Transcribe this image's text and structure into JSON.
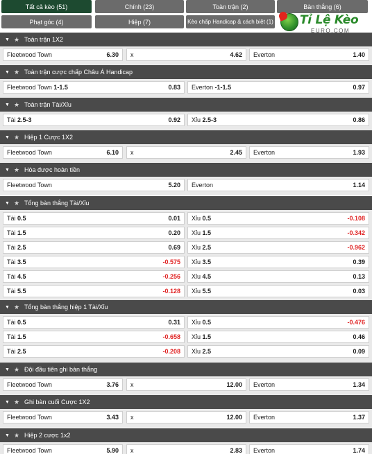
{
  "tabs": [
    {
      "label": "Tất cả kèo (51)",
      "active": true
    },
    {
      "label": "Chính (23)",
      "active": false
    },
    {
      "label": "Toàn trận (2)",
      "active": false
    },
    {
      "label": "Bàn thắng (6)",
      "active": false
    },
    {
      "label": "Phạt góc (4)",
      "active": false
    },
    {
      "label": "Hiệp (7)",
      "active": false
    },
    {
      "label": "Kèo chấp Handicap & cách biệt (1)",
      "active": false
    }
  ],
  "logo": {
    "text": "Tỉ Lệ Kèo",
    "sub": "EURO.COM"
  },
  "sections": [
    {
      "title": "Toàn trận 1X2",
      "rows": [
        [
          {
            "label": "Fleetwood Town",
            "value": "6.30"
          },
          {
            "label": "x",
            "value": "4.62"
          },
          {
            "label": "Everton",
            "value": "1.40"
          }
        ]
      ]
    },
    {
      "title": "Toàn trận cược chấp Châu Á Handicap",
      "rows": [
        [
          {
            "label": "Fleetwood Town",
            "line": "1-1.5",
            "value": "0.83"
          },
          {
            "label": "Everton",
            "line": "-1-1.5",
            "value": "0.97"
          }
        ]
      ]
    },
    {
      "title": "Toàn trận Tài/Xỉu",
      "rows": [
        [
          {
            "label": "Tài",
            "line": "2.5-3",
            "value": "0.92"
          },
          {
            "label": "Xỉu",
            "line": "2.5-3",
            "value": "0.86"
          }
        ]
      ]
    },
    {
      "title": "Hiệp 1 Cược 1X2",
      "rows": [
        [
          {
            "label": "Fleetwood Town",
            "value": "6.10"
          },
          {
            "label": "x",
            "value": "2.45"
          },
          {
            "label": "Everton",
            "value": "1.93"
          }
        ]
      ]
    },
    {
      "title": "Hòa được hoàn tiền",
      "rows": [
        [
          {
            "label": "Fleetwood Town",
            "value": "5.20"
          },
          {
            "label": "Everton",
            "value": "1.14"
          }
        ]
      ]
    },
    {
      "title": "Tổng bàn thắng Tài/Xỉu",
      "rows": [
        [
          {
            "label": "Tài",
            "line": "0.5",
            "value": "0.01"
          },
          {
            "label": "Xỉu",
            "line": "0.5",
            "value": "-0.108",
            "neg": true
          }
        ],
        [
          {
            "label": "Tài",
            "line": "1.5",
            "value": "0.20"
          },
          {
            "label": "Xỉu",
            "line": "1.5",
            "value": "-0.342",
            "neg": true
          }
        ],
        [
          {
            "label": "Tài",
            "line": "2.5",
            "value": "0.69"
          },
          {
            "label": "Xỉu",
            "line": "2.5",
            "value": "-0.962",
            "neg": true
          }
        ],
        [
          {
            "label": "Tài",
            "line": "3.5",
            "value": "-0.575",
            "neg": true
          },
          {
            "label": "Xỉu",
            "line": "3.5",
            "value": "0.39"
          }
        ],
        [
          {
            "label": "Tài",
            "line": "4.5",
            "value": "-0.256",
            "neg": true
          },
          {
            "label": "Xỉu",
            "line": "4.5",
            "value": "0.13"
          }
        ],
        [
          {
            "label": "Tài",
            "line": "5.5",
            "value": "-0.128",
            "neg": true
          },
          {
            "label": "Xỉu",
            "line": "5.5",
            "value": "0.03"
          }
        ]
      ]
    },
    {
      "title": "Tổng bàn thắng hiệp 1 Tài/Xỉu",
      "rows": [
        [
          {
            "label": "Tài",
            "line": "0.5",
            "value": "0.31"
          },
          {
            "label": "Xỉu",
            "line": "0.5",
            "value": "-0.476",
            "neg": true
          }
        ],
        [
          {
            "label": "Tài",
            "line": "1.5",
            "value": "-0.658",
            "neg": true
          },
          {
            "label": "Xỉu",
            "line": "1.5",
            "value": "0.46"
          }
        ],
        [
          {
            "label": "Tài",
            "line": "2.5",
            "value": "-0.208",
            "neg": true
          },
          {
            "label": "Xỉu",
            "line": "2.5",
            "value": "0.09"
          }
        ]
      ]
    },
    {
      "title": "Đội đầu tiên ghi bàn thắng",
      "rows": [
        [
          {
            "label": "Fleetwood Town",
            "value": "3.76"
          },
          {
            "label": "x",
            "value": "12.00"
          },
          {
            "label": "Everton",
            "value": "1.34"
          }
        ]
      ]
    },
    {
      "title": "Ghi bàn cuối Cược 1X2",
      "rows": [
        [
          {
            "label": "Fleetwood Town",
            "value": "3.43"
          },
          {
            "label": "x",
            "value": "12.00"
          },
          {
            "label": "Everton",
            "value": "1.37"
          }
        ]
      ]
    },
    {
      "title": "Hiệp 2 cược 1x2",
      "rows": [
        [
          {
            "label": "Fleetwood Town",
            "value": "5.90"
          },
          {
            "label": "x",
            "value": "2.83"
          },
          {
            "label": "Everton",
            "value": "1.74"
          }
        ]
      ]
    }
  ],
  "icons": {
    "collapse": "caret-down-icon",
    "favorite": "star-icon"
  },
  "colors": {
    "active_tab": "#1d4a30",
    "tab": "#6b6b6b",
    "section_header": "#4a4a4a",
    "negative_odds": "#e02424"
  }
}
